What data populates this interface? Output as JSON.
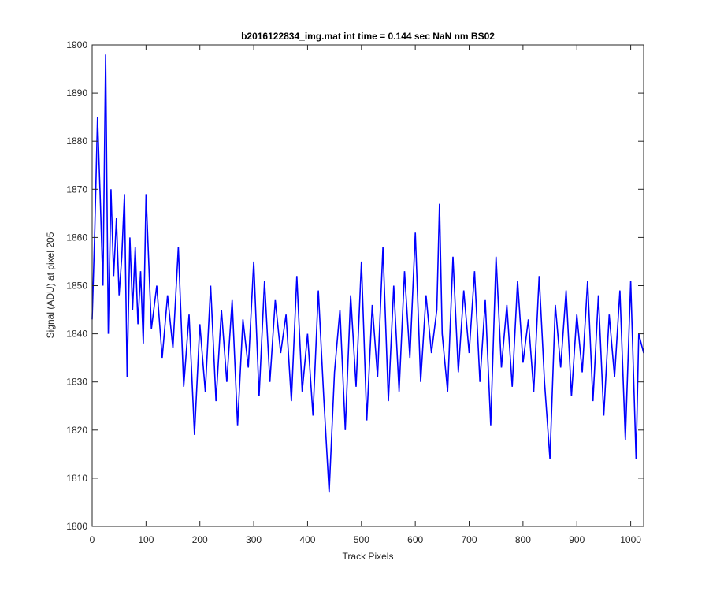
{
  "chart_data": {
    "type": "line",
    "title": "b2016122834_img.mat int time = 0.144 sec  NaN nm BS02",
    "xlabel": "Track Pixels",
    "ylabel": "Signal (ADU) at pixel 205",
    "xlim": [
      0,
      1024
    ],
    "ylim": [
      1800,
      1900
    ],
    "xticks": [
      0,
      100,
      200,
      300,
      400,
      500,
      600,
      700,
      800,
      900,
      1000
    ],
    "yticks": [
      1800,
      1810,
      1820,
      1830,
      1840,
      1850,
      1860,
      1870,
      1880,
      1890,
      1900
    ],
    "grid": false,
    "legend": "none",
    "series": [
      {
        "name": "signal",
        "color": "#0000ff",
        "x": [
          0,
          5,
          10,
          15,
          20,
          25,
          30,
          35,
          40,
          45,
          50,
          55,
          60,
          65,
          70,
          75,
          80,
          85,
          90,
          95,
          100,
          110,
          120,
          130,
          140,
          150,
          160,
          170,
          180,
          190,
          200,
          210,
          220,
          230,
          240,
          250,
          260,
          270,
          280,
          290,
          300,
          310,
          320,
          330,
          340,
          350,
          360,
          370,
          380,
          390,
          400,
          410,
          420,
          430,
          440,
          450,
          460,
          470,
          480,
          490,
          500,
          510,
          520,
          530,
          540,
          550,
          560,
          570,
          580,
          590,
          600,
          610,
          620,
          630,
          640,
          645,
          650,
          660,
          670,
          680,
          690,
          700,
          710,
          720,
          730,
          740,
          750,
          760,
          770,
          780,
          790,
          800,
          810,
          820,
          830,
          840,
          850,
          860,
          870,
          880,
          890,
          900,
          910,
          920,
          930,
          940,
          950,
          960,
          970,
          980,
          990,
          1000,
          1010,
          1015,
          1024
        ],
        "values": [
          1843,
          1862,
          1885,
          1868,
          1850,
          1898,
          1840,
          1870,
          1852,
          1864,
          1848,
          1856,
          1869,
          1831,
          1860,
          1845,
          1858,
          1842,
          1853,
          1838,
          1869,
          1841,
          1850,
          1835,
          1848,
          1837,
          1858,
          1829,
          1844,
          1819,
          1842,
          1828,
          1850,
          1826,
          1845,
          1830,
          1847,
          1821,
          1843,
          1833,
          1855,
          1827,
          1851,
          1830,
          1847,
          1836,
          1844,
          1826,
          1852,
          1828,
          1840,
          1823,
          1849,
          1827,
          1807,
          1832,
          1845,
          1820,
          1848,
          1829,
          1855,
          1822,
          1846,
          1831,
          1858,
          1826,
          1850,
          1828,
          1853,
          1835,
          1861,
          1830,
          1848,
          1836,
          1845,
          1867,
          1840,
          1828,
          1856,
          1832,
          1849,
          1836,
          1853,
          1830,
          1847,
          1821,
          1856,
          1833,
          1846,
          1829,
          1851,
          1834,
          1843,
          1828,
          1852,
          1830,
          1814,
          1846,
          1833,
          1849,
          1827,
          1844,
          1832,
          1851,
          1826,
          1848,
          1823,
          1844,
          1831,
          1849,
          1818,
          1851,
          1814,
          1840,
          1836
        ]
      }
    ]
  }
}
